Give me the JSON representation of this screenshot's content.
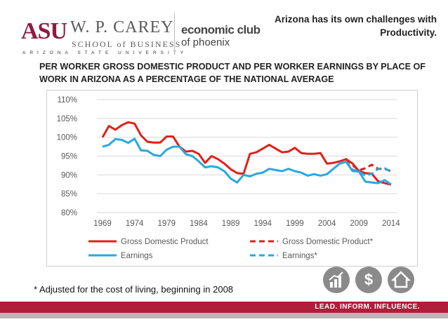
{
  "header": {
    "asu_logo": "ASU",
    "school_name": "W. P. CAREY",
    "school_sub": "SCHOOL of BUSINESS",
    "university": "ARIZONA STATE UNIVERSITY",
    "club_line1": "economic club",
    "club_line2": "of phoenix",
    "headline": "Arizona has its own challenges with Productivity."
  },
  "footnote": "* Adjusted for the cost of living, beginning in 2008",
  "footer": {
    "tagline": "LEAD. INFORM. INFLUENCE."
  },
  "icons": [
    "growth-chart-icon",
    "dollar-icon",
    "house-icon"
  ],
  "colors": {
    "red": "#e0201b",
    "blue": "#29a8df",
    "maroon": "#8c1d40",
    "bar": "#b01e3a"
  },
  "chart_data": {
    "type": "line",
    "title": "PER WORKER GROSS DOMESTIC PRODUCT AND PER WORKER EARNINGS BY PLACE OF WORK IN ARIZONA AS A PERCENTAGE OF THE NATIONAL AVERAGE",
    "xlabel": "",
    "ylabel": "",
    "ylim": [
      80,
      110
    ],
    "yticks": [
      80,
      85,
      90,
      95,
      100,
      105,
      110
    ],
    "ytick_labels": [
      "80%",
      "85%",
      "90%",
      "95%",
      "100%",
      "105%",
      "110%"
    ],
    "xlim": [
      1969,
      2015
    ],
    "xticks": [
      1969,
      1974,
      1979,
      1984,
      1989,
      1994,
      1999,
      2004,
      2009,
      2014
    ],
    "xtick_labels": [
      "1969",
      "1974",
      "1979",
      "1984",
      "1989",
      "1994",
      "1999",
      "2004",
      "2009",
      "2014"
    ],
    "grid": true,
    "legend_position": "bottom",
    "series": [
      {
        "name": "Gross Domestic Product",
        "color": "#e0201b",
        "dashed": false,
        "x": [
          1969,
          1970,
          1971,
          1972,
          1973,
          1974,
          1975,
          1976,
          1977,
          1978,
          1979,
          1980,
          1981,
          1982,
          1983,
          1984,
          1985,
          1986,
          1987,
          1988,
          1989,
          1990,
          1991,
          1992,
          1993,
          1994,
          1995,
          1996,
          1997,
          1998,
          1999,
          2000,
          2001,
          2002,
          2003,
          2004,
          2005,
          2006,
          2007,
          2008,
          2009,
          2010,
          2011,
          2012,
          2013,
          2014
        ],
        "values": [
          100,
          103,
          102,
          103.2,
          104,
          103.6,
          100.5,
          98.8,
          98.6,
          98.6,
          100.2,
          100.2,
          97.5,
          96.2,
          96.4,
          95.6,
          93.2,
          95,
          94.2,
          93,
          91.5,
          90.5,
          90.3,
          95.6,
          96,
          97,
          98,
          97,
          96,
          96.2,
          97.2,
          95.8,
          95.6,
          95.6,
          95.8,
          93,
          93.2,
          93.6,
          94.2,
          93,
          91,
          90.5,
          90.3,
          88.3,
          87.8,
          87.4
        ]
      },
      {
        "name": "Gross Domestic Product*",
        "color": "#e0201b",
        "dashed": true,
        "x": [
          2007,
          2008,
          2009,
          2010,
          2011,
          2012,
          2013,
          2014
        ],
        "values": [
          94.2,
          92.6,
          91.2,
          91.8,
          92.7,
          91.6,
          91.6,
          91
        ]
      },
      {
        "name": "Earnings",
        "color": "#29a8df",
        "dashed": false,
        "x": [
          1969,
          1970,
          1971,
          1972,
          1973,
          1974,
          1975,
          1976,
          1977,
          1978,
          1979,
          1980,
          1981,
          1982,
          1983,
          1984,
          1985,
          1986,
          1987,
          1988,
          1989,
          1990,
          1991,
          1992,
          1993,
          1994,
          1995,
          1996,
          1997,
          1998,
          1999,
          2000,
          2001,
          2002,
          2003,
          2004,
          2005,
          2006,
          2007,
          2008,
          2009,
          2010,
          2011,
          2012,
          2013,
          2014
        ],
        "values": [
          97.5,
          98,
          99.5,
          99.3,
          98.5,
          99.6,
          96.5,
          96.4,
          95.3,
          95,
          96.7,
          97.5,
          97.5,
          95.5,
          95,
          93.6,
          92,
          92.3,
          92,
          91,
          89,
          88,
          90,
          89.6,
          90.3,
          90.6,
          91.6,
          91.3,
          91,
          91.6,
          91,
          90.6,
          89.8,
          90.2,
          89.8,
          90.2,
          91.6,
          93,
          93.5,
          91,
          90.9,
          88.2,
          88,
          87.8,
          88.6,
          87.5
        ]
      },
      {
        "name": "Earnings*",
        "color": "#29a8df",
        "dashed": true,
        "x": [
          2007,
          2008,
          2009,
          2010,
          2011,
          2012,
          2013,
          2014
        ],
        "values": [
          93.5,
          91.4,
          90.9,
          89.8,
          90.3,
          91.6,
          91.8,
          90.8
        ]
      }
    ]
  }
}
